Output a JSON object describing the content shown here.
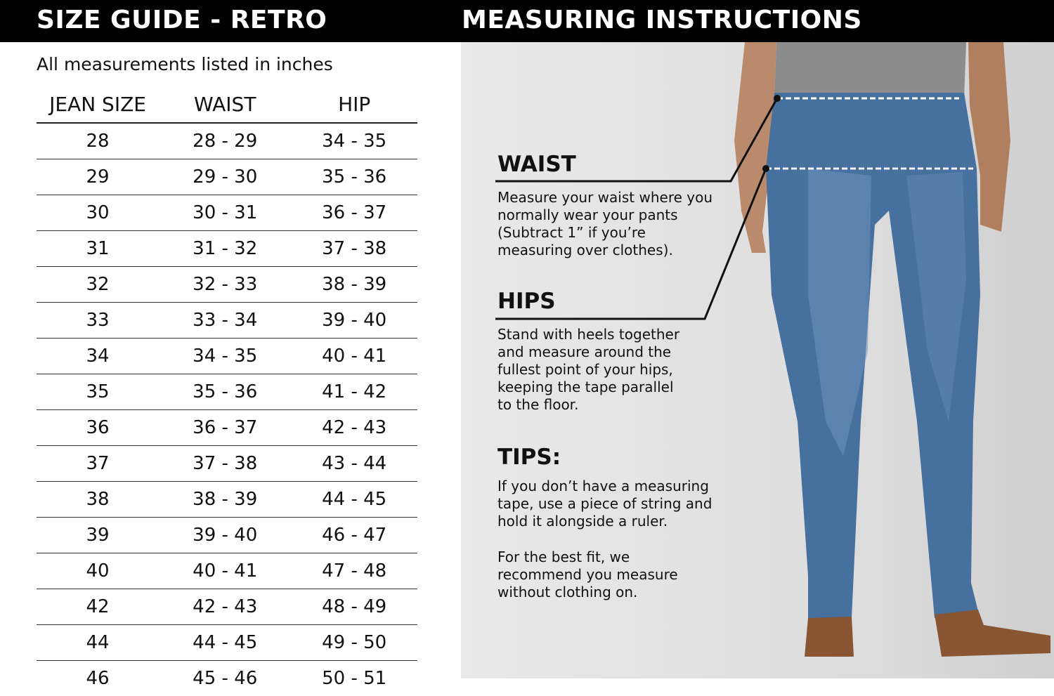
{
  "header": {
    "left_title": "SIZE GUIDE - RETRO",
    "right_title": "MEASURING INSTRUCTIONS"
  },
  "size_chart": {
    "note": "All measurements listed in inches",
    "columns": [
      "JEAN SIZE",
      "WAIST",
      "HIP"
    ],
    "rows": [
      [
        "28",
        "28 - 29",
        "34 - 35"
      ],
      [
        "29",
        "29 - 30",
        "35 - 36"
      ],
      [
        "30",
        "30 - 31",
        "36 - 37"
      ],
      [
        "31",
        "31 - 32",
        "37 - 38"
      ],
      [
        "32",
        "32 - 33",
        "38 - 39"
      ],
      [
        "33",
        "33 - 34",
        "39 - 40"
      ],
      [
        "34",
        "34 - 35",
        "40 - 41"
      ],
      [
        "35",
        "35 - 36",
        "41 - 42"
      ],
      [
        "36",
        "36 - 37",
        "42 - 43"
      ],
      [
        "37",
        "37 - 38",
        "43 - 44"
      ],
      [
        "38",
        "38 - 39",
        "44 - 45"
      ],
      [
        "39",
        "39 - 40",
        "46 - 47"
      ],
      [
        "40",
        "40 - 41",
        "47 - 48"
      ],
      [
        "42",
        "42 - 43",
        "48 - 49"
      ],
      [
        "44",
        "44 - 45",
        "49 - 50"
      ],
      [
        "46",
        "45 - 46",
        "50 - 51"
      ]
    ]
  },
  "instructions": {
    "waist": {
      "heading": "WAIST",
      "text": "Measure your waist where you\nnormally wear your pants\n(Subtract 1” if you’re\nmeasuring over clothes)."
    },
    "hips": {
      "heading": "HIPS",
      "text": "Stand with heels together\nand measure around the\nfullest point of your hips,\nkeeping the tape parallel\nto the floor."
    },
    "tips": {
      "heading": "TIPS:",
      "text1": "If you don’t have a measuring\ntape, use a piece of string and\nhold it alongside a ruler.",
      "text2": "For the best fit, we\nrecommend you measure\nwithout clothing on."
    }
  },
  "colors": {
    "header_bg": "#000000",
    "panel_bg": "#e2e2e2",
    "denim": "#3f6a9a"
  }
}
